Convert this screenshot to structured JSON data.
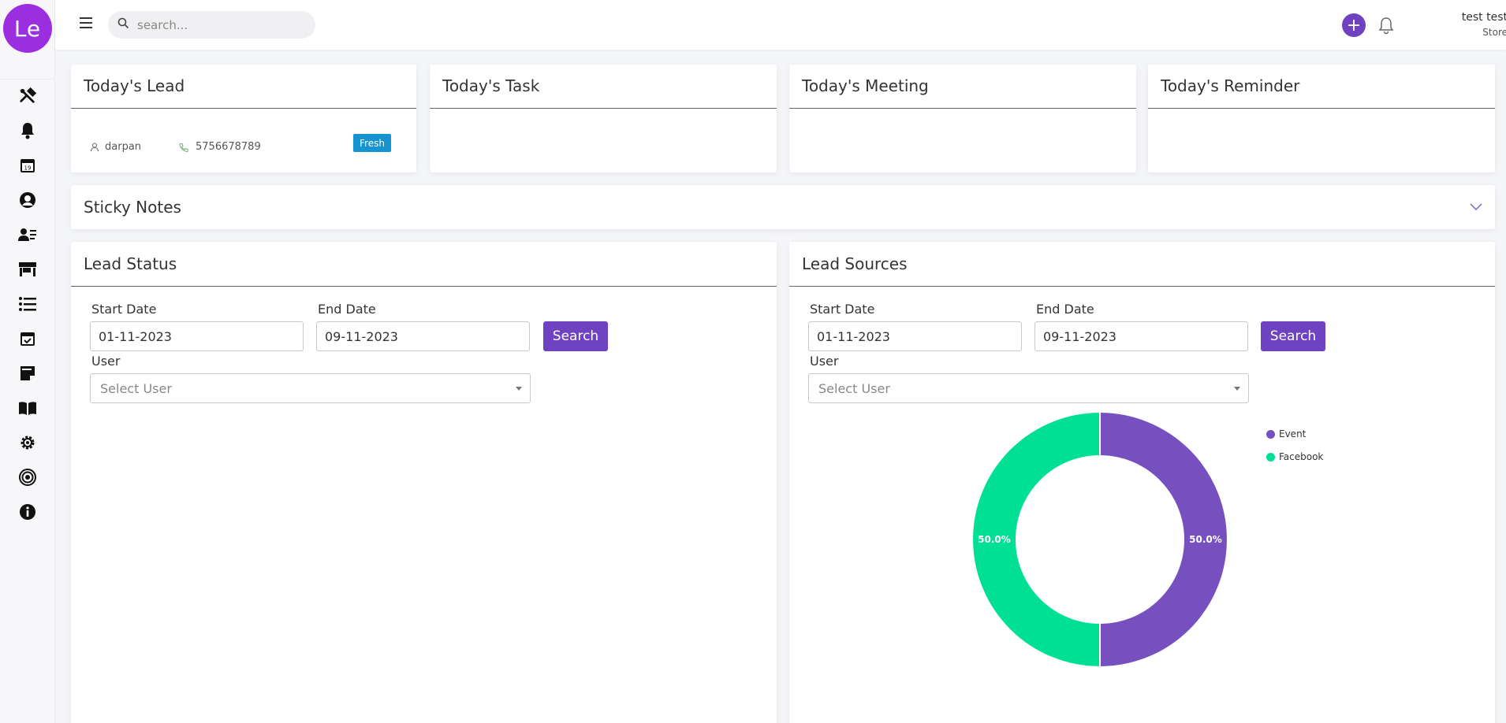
{
  "logo": {
    "text": "Le"
  },
  "search": {
    "placeholder": "search..."
  },
  "user": {
    "name": "test test",
    "role": "Store"
  },
  "topbar": {
    "add_symbol": "+"
  },
  "cards": {
    "today_lead": {
      "title": "Today's Lead",
      "lead_name": "darpan",
      "lead_phone": "5756678789",
      "lead_status": "Fresh"
    },
    "today_task": {
      "title": "Today's Task"
    },
    "today_meeting": {
      "title": "Today's Meeting"
    },
    "today_reminder": {
      "title": "Today's Reminder"
    }
  },
  "sticky_notes": {
    "title": "Sticky Notes"
  },
  "lead_status": {
    "title": "Lead Status",
    "start_label": "Start Date",
    "start_value": "01-11-2023",
    "end_label": "End Date",
    "end_value": "09-11-2023",
    "search_label": "Search",
    "user_label": "User",
    "user_placeholder": "Select User"
  },
  "lead_sources": {
    "title": "Lead Sources",
    "start_label": "Start Date",
    "start_value": "01-11-2023",
    "end_label": "End Date",
    "end_value": "09-11-2023",
    "search_label": "Search",
    "user_label": "User",
    "user_placeholder": "Select User"
  },
  "chart_data": {
    "type": "pie",
    "categories": [
      "Event",
      "Facebook"
    ],
    "values": [
      50.0,
      50.0
    ],
    "labels": [
      "50.0%",
      "50.0%"
    ],
    "colors": [
      "#7750c0",
      "#00e095"
    ],
    "legend": "top-right",
    "donut": true
  },
  "colors": {
    "accent": "#6f42c1",
    "badge": "#1793d1",
    "logo": "#9b2fe0"
  },
  "sidebar_icons": [
    "tools-icon",
    "bell-icon",
    "calendar-icon",
    "user-circle-icon",
    "contacts-icon",
    "store-icon",
    "list-icon",
    "calendar-check-icon",
    "sticky-note-icon",
    "book-icon",
    "settings-icon",
    "target-icon",
    "info-icon"
  ]
}
